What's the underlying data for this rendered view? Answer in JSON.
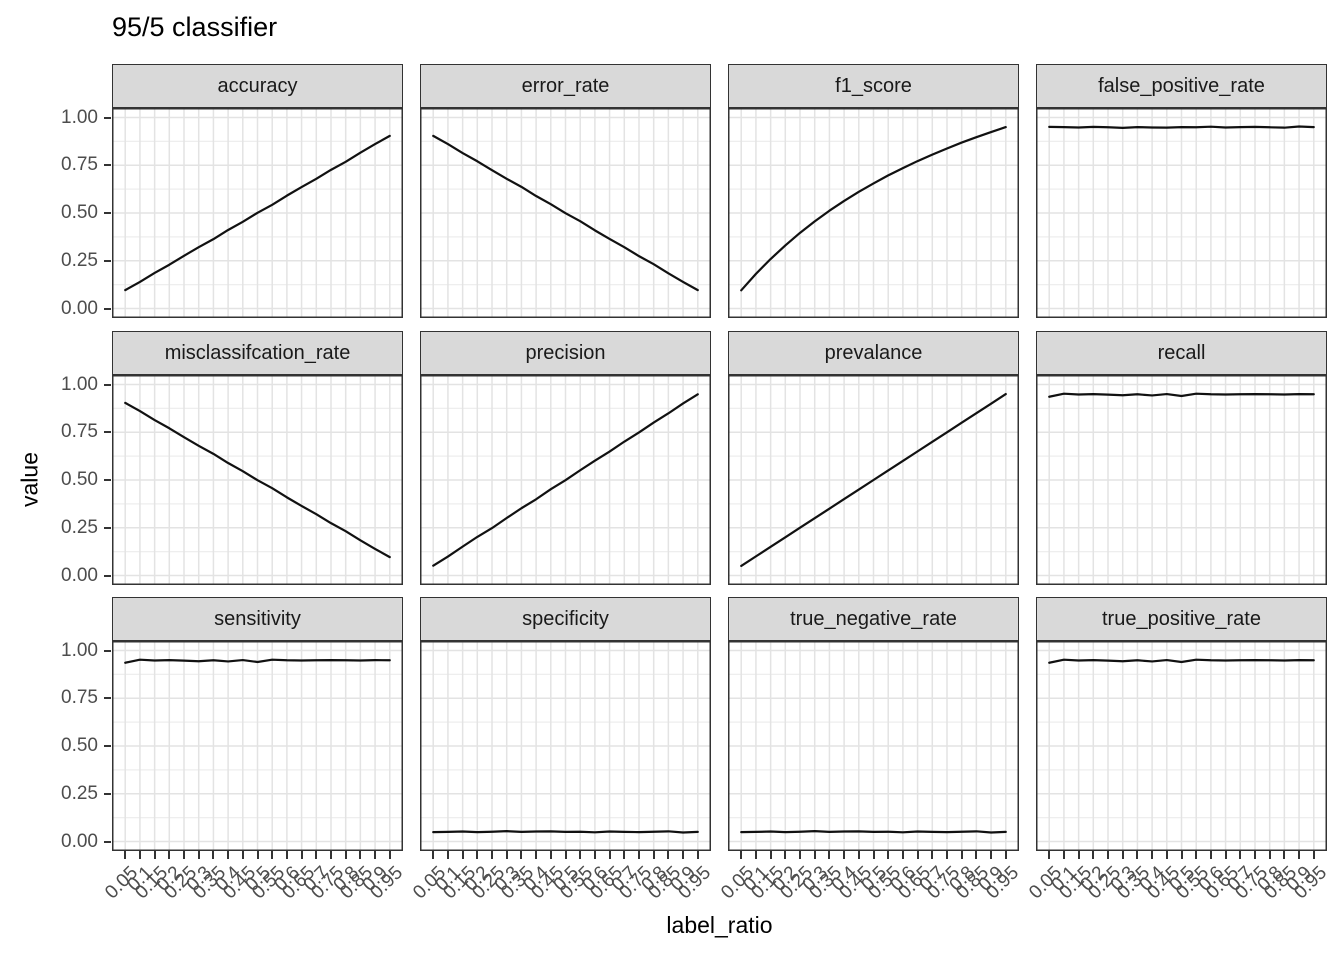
{
  "title": "95/5 classifier",
  "axes": {
    "x_title": "label_ratio",
    "y_title": "value",
    "x_tick_labels": [
      "0.05",
      "0.1",
      "0.15",
      "0.2",
      "0.25",
      "0.3",
      "0.35",
      "0.4",
      "0.45",
      "0.5",
      "0.55",
      "0.6",
      "0.65",
      "0.7",
      "0.75",
      "0.8",
      "0.85",
      "0.9",
      "0.95"
    ],
    "y_tick_labels": [
      "1.00",
      "0.75",
      "0.50",
      "0.25",
      "0.00"
    ],
    "y_tick_values": [
      1.0,
      0.75,
      0.5,
      0.25,
      0.0
    ]
  },
  "colors": {
    "line": "#111111",
    "strip_background": "#d9d9d9",
    "panel_border": "#333333",
    "grid_major": "#e3e3e3",
    "grid_minor": "#eeeeee",
    "tick": "#333333",
    "tick_label": "#4d4d4d",
    "text": "#000000"
  },
  "chart_data": {
    "type": "line",
    "title": "95/5 classifier",
    "xlabel": "label_ratio",
    "ylabel": "value",
    "xlim": [
      0.05,
      0.95
    ],
    "ylim": [
      0.0,
      1.0
    ],
    "grid": true,
    "legend": "none",
    "facet_layout": {
      "rows": 3,
      "cols": 4
    },
    "x": [
      0.05,
      0.1,
      0.15,
      0.2,
      0.25,
      0.3,
      0.35,
      0.4,
      0.45,
      0.5,
      0.55,
      0.6,
      0.65,
      0.7,
      0.75,
      0.8,
      0.85,
      0.9,
      0.95
    ],
    "y_major_breaks": [
      0.0,
      0.25,
      0.5,
      0.75,
      1.0
    ],
    "y_minor_breaks": [
      0.125,
      0.375,
      0.625,
      0.875
    ],
    "series": [
      {
        "name": "accuracy",
        "values": [
          0.096,
          0.139,
          0.186,
          0.229,
          0.276,
          0.321,
          0.363,
          0.411,
          0.454,
          0.501,
          0.543,
          0.591,
          0.636,
          0.679,
          0.726,
          0.768,
          0.816,
          0.861,
          0.904
        ]
      },
      {
        "name": "error_rate",
        "values": [
          0.904,
          0.861,
          0.814,
          0.771,
          0.724,
          0.679,
          0.637,
          0.589,
          0.546,
          0.499,
          0.457,
          0.409,
          0.364,
          0.321,
          0.274,
          0.232,
          0.184,
          0.139,
          0.096
        ]
      },
      {
        "name": "f1_score",
        "values": [
          0.095,
          0.181,
          0.259,
          0.33,
          0.396,
          0.456,
          0.512,
          0.563,
          0.611,
          0.655,
          0.697,
          0.735,
          0.772,
          0.806,
          0.838,
          0.869,
          0.897,
          0.924,
          0.95
        ]
      },
      {
        "name": "false_positive_rate",
        "values": [
          0.951,
          0.95,
          0.948,
          0.951,
          0.949,
          0.946,
          0.95,
          0.948,
          0.947,
          0.95,
          0.949,
          0.952,
          0.948,
          0.95,
          0.951,
          0.949,
          0.947,
          0.953,
          0.95
        ]
      },
      {
        "name": "misclassifcation_rate",
        "values": [
          0.904,
          0.861,
          0.814,
          0.771,
          0.724,
          0.679,
          0.637,
          0.589,
          0.546,
          0.499,
          0.457,
          0.409,
          0.364,
          0.321,
          0.274,
          0.232,
          0.184,
          0.139,
          0.096
        ]
      },
      {
        "name": "precision",
        "values": [
          0.051,
          0.099,
          0.151,
          0.202,
          0.248,
          0.301,
          0.352,
          0.399,
          0.452,
          0.499,
          0.551,
          0.601,
          0.649,
          0.701,
          0.749,
          0.801,
          0.849,
          0.901,
          0.949
        ]
      },
      {
        "name": "prevalance",
        "values": [
          0.05,
          0.1,
          0.15,
          0.2,
          0.25,
          0.3,
          0.35,
          0.4,
          0.45,
          0.5,
          0.55,
          0.6,
          0.65,
          0.7,
          0.75,
          0.8,
          0.85,
          0.9,
          0.95
        ]
      },
      {
        "name": "recall",
        "values": [
          0.936,
          0.952,
          0.948,
          0.95,
          0.947,
          0.944,
          0.949,
          0.943,
          0.95,
          0.94,
          0.952,
          0.949,
          0.948,
          0.949,
          0.95,
          0.949,
          0.948,
          0.95,
          0.949
        ]
      },
      {
        "name": "sensitivity",
        "values": [
          0.936,
          0.952,
          0.948,
          0.95,
          0.947,
          0.944,
          0.949,
          0.943,
          0.95,
          0.94,
          0.952,
          0.949,
          0.948,
          0.949,
          0.95,
          0.949,
          0.948,
          0.95,
          0.949
        ]
      },
      {
        "name": "specificity",
        "values": [
          0.049,
          0.05,
          0.052,
          0.049,
          0.051,
          0.054,
          0.05,
          0.052,
          0.053,
          0.05,
          0.051,
          0.048,
          0.052,
          0.05,
          0.049,
          0.051,
          0.053,
          0.047,
          0.05
        ]
      },
      {
        "name": "true_negative_rate",
        "values": [
          0.049,
          0.05,
          0.052,
          0.049,
          0.051,
          0.054,
          0.05,
          0.052,
          0.053,
          0.05,
          0.051,
          0.048,
          0.052,
          0.05,
          0.049,
          0.051,
          0.053,
          0.047,
          0.05
        ]
      },
      {
        "name": "true_positive_rate",
        "values": [
          0.936,
          0.952,
          0.948,
          0.95,
          0.947,
          0.944,
          0.949,
          0.943,
          0.95,
          0.94,
          0.952,
          0.949,
          0.948,
          0.949,
          0.95,
          0.949,
          0.948,
          0.95,
          0.949
        ]
      }
    ]
  }
}
